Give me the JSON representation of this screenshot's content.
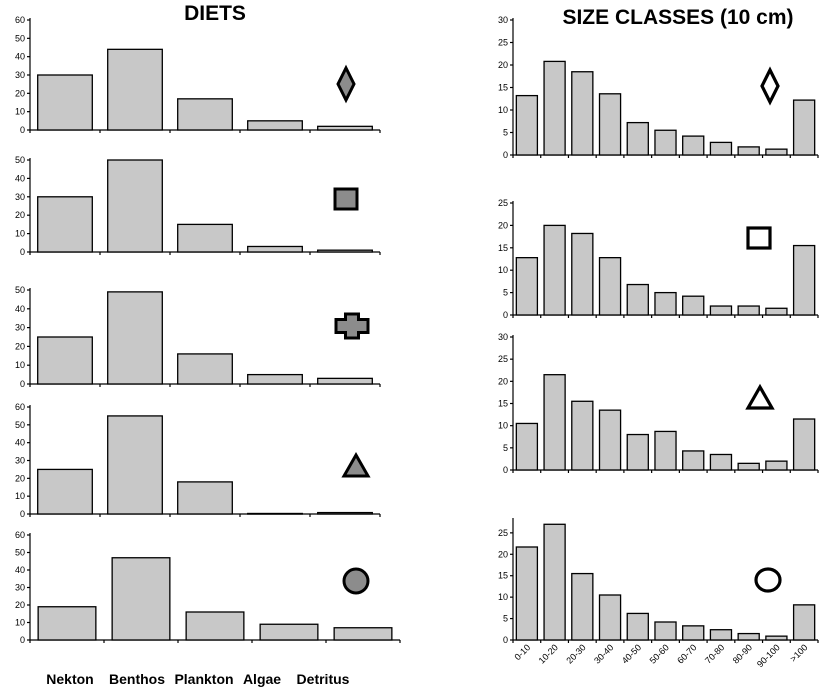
{
  "chart_data": [
    {
      "type": "bar",
      "title": "DIETS",
      "categories": [
        "Nekton",
        "Benthos",
        "Plankton",
        "Algae",
        "Detritus"
      ],
      "subplots": [
        {
          "marker": "diamond-filled",
          "ylim": [
            0,
            60
          ],
          "yticks": [
            0,
            10,
            20,
            30,
            40,
            50,
            60
          ],
          "values": [
            30,
            44,
            17,
            5,
            2
          ]
        },
        {
          "marker": "square-filled",
          "ylim": [
            0,
            50
          ],
          "yticks": [
            0,
            10,
            20,
            30,
            40,
            50
          ],
          "values": [
            30,
            50,
            15,
            3,
            1
          ]
        },
        {
          "marker": "cross-filled",
          "ylim": [
            0,
            50
          ],
          "yticks": [
            0,
            10,
            20,
            30,
            40,
            50
          ],
          "values": [
            25,
            49,
            16,
            5,
            3
          ]
        },
        {
          "marker": "triangle-filled",
          "ylim": [
            0,
            60
          ],
          "yticks": [
            0,
            10,
            20,
            30,
            40,
            50,
            60
          ],
          "values": [
            25,
            55,
            18,
            0.3,
            0.8
          ]
        },
        {
          "marker": "circle-filled",
          "ylim": [
            0,
            60
          ],
          "yticks": [
            0,
            10,
            20,
            30,
            40,
            50,
            60
          ],
          "values": [
            19,
            47,
            16,
            9,
            7
          ]
        }
      ]
    },
    {
      "type": "bar",
      "title": "SIZE CLASSES (10 cm)",
      "categories": [
        "0-10",
        "10-20",
        "20-30",
        "30-40",
        "40-50",
        "50-60",
        "60-70",
        "70-80",
        "80-90",
        "90-100",
        ">100"
      ],
      "subplots": [
        {
          "marker": "diamond-open",
          "ylim": [
            0,
            30
          ],
          "yticks": [
            0,
            5,
            10,
            15,
            20,
            25,
            30
          ],
          "values": [
            13.2,
            20.8,
            18.5,
            13.6,
            7.2,
            5.5,
            4.2,
            2.8,
            1.8,
            1.3,
            12.2
          ]
        },
        {
          "marker": "square-open",
          "ylim": [
            0,
            25
          ],
          "yticks": [
            0,
            5,
            10,
            15,
            20,
            25
          ],
          "values": [
            12.8,
            20,
            18.2,
            12.8,
            6.8,
            5,
            4.2,
            2,
            2,
            1.5,
            15.5
          ]
        },
        {
          "marker": "triangle-open",
          "ylim": [
            0,
            30
          ],
          "yticks": [
            0,
            5,
            10,
            15,
            20,
            25,
            30
          ],
          "values": [
            10.5,
            21.5,
            15.5,
            13.5,
            8,
            8.7,
            4.3,
            3.5,
            1.5,
            2,
            11.5
          ]
        },
        {
          "marker": "circle-open",
          "ylim": [
            0,
            28
          ],
          "yticks": [
            0,
            5,
            10,
            15,
            20,
            25
          ],
          "values": [
            21.7,
            27,
            15.5,
            10.5,
            6.2,
            4.2,
            3.3,
            2.4,
            1.5,
            0.9,
            8.2
          ]
        }
      ]
    }
  ],
  "colors": {
    "bar_fill": "#c8c8c8",
    "marker_fill": "#8c8c8c",
    "stroke": "#000000"
  }
}
